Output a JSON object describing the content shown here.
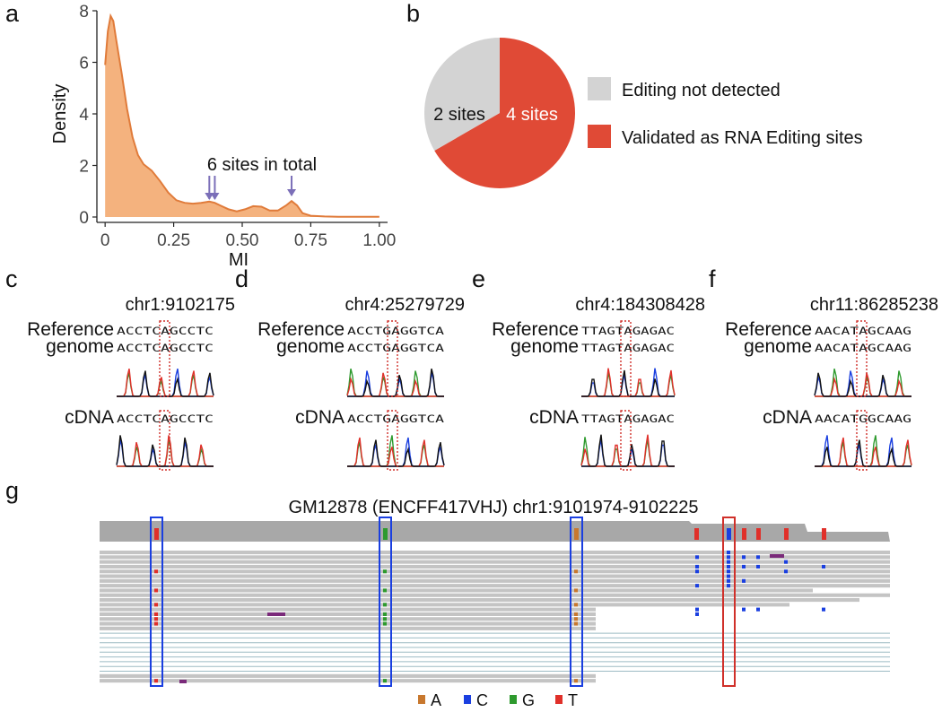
{
  "panels": {
    "a": "a",
    "b": "b",
    "c": "c",
    "d": "d",
    "e": "e",
    "f": "f",
    "g": "g"
  },
  "chart_data": [
    {
      "type": "area",
      "xlabel": "MI",
      "ylabel": "Density",
      "xlim": [
        -0.03,
        1.03
      ],
      "ylim": [
        0,
        8
      ],
      "xticks": [
        "0",
        "0.25",
        "0.50",
        "0.75",
        "1.00"
      ],
      "xtick_values": [
        0,
        0.25,
        0.5,
        0.75,
        1.0
      ],
      "yticks": [
        "0",
        "2",
        "4",
        "6",
        "8"
      ],
      "ytick_values": [
        0,
        2,
        4,
        6,
        8
      ],
      "x": [
        0,
        0.01,
        0.02,
        0.03,
        0.04,
        0.06,
        0.08,
        0.1,
        0.12,
        0.14,
        0.17,
        0.2,
        0.23,
        0.26,
        0.29,
        0.32,
        0.35,
        0.38,
        0.4,
        0.42,
        0.45,
        0.48,
        0.51,
        0.54,
        0.57,
        0.6,
        0.63,
        0.66,
        0.68,
        0.7,
        0.72,
        0.75,
        0.8,
        0.85,
        0.9,
        0.95,
        1.0
      ],
      "y": [
        5.9,
        7.2,
        7.8,
        7.6,
        6.9,
        5.6,
        4.2,
        3.1,
        2.4,
        2.05,
        1.8,
        1.4,
        0.95,
        0.65,
        0.55,
        0.52,
        0.55,
        0.6,
        0.55,
        0.45,
        0.3,
        0.22,
        0.3,
        0.42,
        0.4,
        0.25,
        0.25,
        0.45,
        0.62,
        0.45,
        0.15,
        0.05,
        0.02,
        0.01,
        0.01,
        0.01,
        0.01
      ],
      "annotation": "6 sites in total",
      "arrow_x": [
        0.38,
        0.4,
        0.68
      ],
      "fill": "#F4B27E",
      "line": "#E07B3A"
    },
    {
      "type": "pie",
      "slices": [
        {
          "name": "Validated as RNA Editing sites",
          "value": 4,
          "label": "4 sites",
          "color": "#E04A36"
        },
        {
          "name": "Editing not detected",
          "value": 2,
          "label": "2 sites",
          "color": "#D3D3D3"
        }
      ],
      "legend": "right"
    }
  ],
  "sanger": [
    {
      "id": "c",
      "locus": "chr1:9102175",
      "seq": "ACCTCAGCCTC",
      "cdna": "ACCTCAGCCTC",
      "left_labels": [
        "Reference",
        "genome"
      ]
    },
    {
      "id": "d",
      "locus": "chr4:25279729",
      "seq": "ACCTGAGGTCA",
      "cdna": "ACCTGAGGTCA",
      "left_labels": [
        "Reference",
        "genome"
      ]
    },
    {
      "id": "e",
      "locus": "chr4:184308428",
      "seq": "TTAGTAGAGAC",
      "cdna": "TTAGTAGAGAC",
      "left_labels": [
        "Reference",
        "genome"
      ]
    },
    {
      "id": "f",
      "locus": "chr11:86285238",
      "seq": "AACATAGCAAG",
      "cdna": "AACATGGCAAG",
      "left_labels": [
        "Reference",
        "genome"
      ]
    }
  ],
  "cdna_label": "cDNA",
  "igv": {
    "title": "GM12878 (ENCFF417VHJ) chr1:9101974-9102225",
    "legend": [
      {
        "base": "A",
        "color": "#C8782E"
      },
      {
        "base": "C",
        "color": "#1A3FE0"
      },
      {
        "base": "G",
        "color": "#2E9A2E"
      },
      {
        "base": "T",
        "color": "#E0302A"
      }
    ]
  }
}
